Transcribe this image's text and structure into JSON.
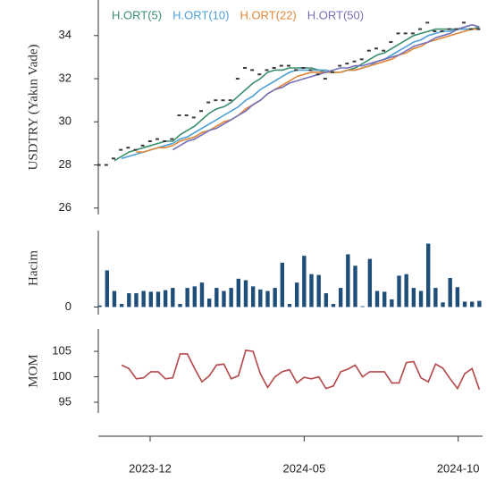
{
  "chart_data": [
    {
      "type": "line",
      "ylabel": "USDTRY (Yakın Vade)",
      "color": "#3a3a3a",
      "values": [
        28.0,
        28.0,
        28.3,
        28.7,
        28.8,
        28.7,
        28.9,
        29.1,
        29.2,
        29.1,
        29.2,
        30.3,
        30.3,
        30.2,
        30.5,
        30.9,
        31.0,
        31.0,
        31.0,
        32.0,
        32.5,
        32.4,
        32.2,
        32.4,
        32.5,
        32.6,
        32.6,
        32.4,
        32.5,
        32.4,
        32.2,
        32.0,
        32.3,
        32.6,
        32.7,
        32.8,
        32.9,
        33.3,
        33.4,
        33.3,
        33.7,
        34.1,
        34.1,
        34.1,
        34.3,
        34.6,
        34.2,
        34.2,
        34.3,
        34.3,
        34.6,
        34.3,
        34.3
      ],
      "series": [
        {
          "name": "H.ORT(5)",
          "color": "#3a8f6a",
          "values": [
            null,
            null,
            28.2,
            28.4,
            28.6,
            28.7,
            28.8,
            28.9,
            29.0,
            29.1,
            29.1,
            29.4,
            29.6,
            29.8,
            30.1,
            30.4,
            30.6,
            30.7,
            30.9,
            31.2,
            31.5,
            31.8,
            32.0,
            32.3,
            32.4,
            32.4,
            32.5,
            32.5,
            32.5,
            32.5,
            32.4,
            32.3,
            32.3,
            32.3,
            32.4,
            32.5,
            32.7,
            32.9,
            33.1,
            33.2,
            33.4,
            33.6,
            33.8,
            34.0,
            34.1,
            34.2,
            34.3,
            34.3,
            34.3,
            34.3,
            34.3,
            34.3,
            34.4
          ]
        },
        {
          "name": "H.ORT(10)",
          "color": "#4d9fd6",
          "values": [
            null,
            null,
            null,
            28.3,
            28.4,
            28.5,
            28.6,
            28.7,
            28.8,
            28.9,
            29.0,
            29.2,
            29.3,
            29.5,
            29.7,
            29.9,
            30.1,
            30.3,
            30.5,
            30.7,
            31.0,
            31.2,
            31.5,
            31.7,
            31.9,
            32.1,
            32.3,
            32.4,
            32.4,
            32.4,
            32.4,
            32.4,
            32.3,
            32.3,
            32.4,
            32.4,
            32.5,
            32.6,
            32.8,
            32.9,
            33.1,
            33.3,
            33.5,
            33.7,
            33.8,
            34.0,
            34.1,
            34.2,
            34.2,
            34.3,
            34.3,
            34.3,
            34.3
          ]
        },
        {
          "name": "H.ORT(22)",
          "color": "#e0873a",
          "values": [
            null,
            null,
            null,
            null,
            null,
            28.6,
            28.6,
            28.7,
            28.8,
            28.8,
            28.9,
            29.1,
            29.2,
            29.3,
            29.5,
            29.6,
            29.8,
            30.0,
            30.1,
            30.3,
            30.6,
            30.8,
            31.0,
            31.3,
            31.5,
            31.7,
            31.9,
            32.1,
            32.2,
            32.3,
            32.3,
            32.3,
            32.3,
            32.3,
            32.4,
            32.4,
            32.5,
            32.6,
            32.7,
            32.8,
            32.9,
            33.1,
            33.2,
            33.4,
            33.5,
            33.7,
            33.8,
            33.9,
            34.0,
            34.1,
            34.2,
            34.3,
            34.3
          ]
        },
        {
          "name": "H.ORT(50)",
          "color": "#7670b5",
          "values": [
            null,
            null,
            null,
            null,
            null,
            null,
            null,
            null,
            null,
            null,
            28.7,
            28.9,
            29.1,
            29.2,
            29.4,
            29.6,
            29.7,
            29.9,
            30.1,
            30.3,
            30.5,
            30.8,
            31.0,
            31.3,
            31.5,
            31.6,
            31.8,
            31.9,
            32.0,
            32.1,
            32.2,
            32.3,
            32.4,
            32.5,
            32.5,
            32.6,
            32.6,
            32.7,
            32.8,
            32.9,
            33.0,
            33.1,
            33.3,
            33.5,
            33.6,
            33.7,
            33.9,
            34.0,
            34.1,
            34.3,
            34.4,
            34.5,
            34.4
          ]
        }
      ],
      "ylim": [
        25.7,
        35.65
      ],
      "yticks": [
        26,
        28,
        30,
        32,
        34
      ]
    },
    {
      "type": "bar",
      "ylabel": "Hacim",
      "color": "#1f4e79",
      "values": [
        0.2,
        4.8,
        2.1,
        0.4,
        1.8,
        1.8,
        2.1,
        2.0,
        2.0,
        2.2,
        2.5,
        0.4,
        2.5,
        2.7,
        3.2,
        1.1,
        2.5,
        2.1,
        2.5,
        3.7,
        3.5,
        2.7,
        2.3,
        2.1,
        2.5,
        5.8,
        0.4,
        3.2,
        6.7,
        4.3,
        4.2,
        1.8,
        0.4,
        2.5,
        6.9,
        5.4,
        0.1,
        6.3,
        2.1,
        2.0,
        1.0,
        4.1,
        4.3,
        2.5,
        2.1,
        8.3,
        2.5,
        0.6,
        3.8,
        2.6,
        0.7,
        0.7,
        0.8
      ],
      "ylim": [
        -1,
        10
      ],
      "yticks": [
        0
      ]
    },
    {
      "type": "line",
      "ylabel": "MOM",
      "color": "#b5474b",
      "values": [
        null,
        null,
        null,
        102.3,
        101.6,
        99.6,
        99.8,
        101.0,
        101.0,
        99.6,
        99.8,
        104.5,
        104.5,
        101.6,
        99.0,
        100.2,
        102.3,
        102.5,
        99.6,
        100.2,
        105.2,
        105.0,
        100.6,
        97.9,
        100.0,
        101.0,
        101.4,
        98.8,
        99.9,
        99.6,
        100.0,
        97.7,
        98.2,
        101.0,
        101.5,
        102.3,
        100.0,
        101.0,
        101.0,
        101.0,
        98.8,
        98.8,
        102.8,
        103.0,
        99.8,
        99.0,
        102.5,
        101.7,
        99.6,
        97.7,
        100.6,
        101.6,
        97.5
      ],
      "ylim": [
        92.9,
        109.4
      ],
      "yticks": [
        95,
        100,
        105
      ],
      "xlim": [
        -0.2,
        52.2
      ],
      "xticks": [
        {
          "value": 6.9,
          "label": "2023-12"
        },
        {
          "value": 28.0,
          "label": "2024-05"
        },
        {
          "value": 49.1,
          "label": "2024-10"
        }
      ]
    }
  ]
}
